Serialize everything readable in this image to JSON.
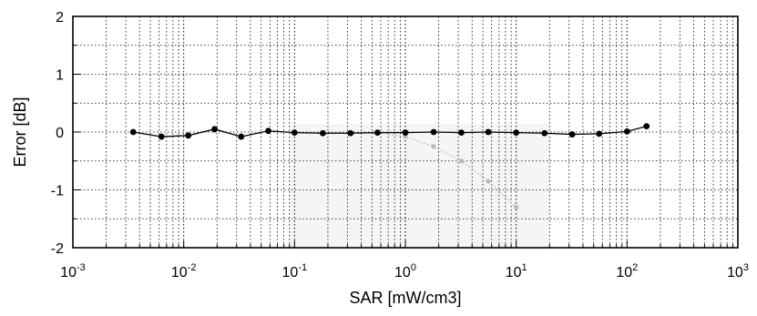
{
  "chart_data": {
    "type": "line",
    "title": "",
    "xlabel": "SAR [mW/cm3]",
    "ylabel": "Error [dB]",
    "x_scale": "log",
    "xlim": [
      0.001,
      1000
    ],
    "ylim": [
      -2,
      2
    ],
    "x_ticks": [
      {
        "base": "10",
        "exp": "-3"
      },
      {
        "base": "10",
        "exp": "-2"
      },
      {
        "base": "10",
        "exp": "-1"
      },
      {
        "base": "10",
        "exp": "0"
      },
      {
        "base": "10",
        "exp": "1"
      },
      {
        "base": "10",
        "exp": "2"
      },
      {
        "base": "10",
        "exp": "3"
      }
    ],
    "y_ticks": [
      "2",
      "1",
      "0",
      "-1",
      "-2"
    ],
    "y_tick_values": [
      2,
      1,
      0,
      -1,
      -2
    ],
    "grid": true,
    "legend": "none",
    "series": [
      {
        "color": "#000000",
        "x": [
          0.0035,
          0.0063,
          0.011,
          0.019,
          0.033,
          0.058,
          0.1,
          0.18,
          0.32,
          0.56,
          1.0,
          1.8,
          3.2,
          5.6,
          10,
          18,
          32,
          56,
          100,
          150
        ],
        "y": [
          0.0,
          -0.08,
          -0.06,
          0.05,
          -0.08,
          0.02,
          -0.01,
          -0.02,
          -0.02,
          -0.01,
          -0.01,
          0.0,
          -0.01,
          0.0,
          -0.01,
          -0.02,
          -0.04,
          -0.03,
          0.01,
          0.1
        ]
      },
      {
        "color": "#b8b8b8",
        "x": [
          0.56,
          1.0,
          1.8,
          3.2,
          5.6,
          10
        ],
        "y": [
          -0.02,
          -0.08,
          -0.25,
          -0.5,
          -0.85,
          -1.3
        ]
      }
    ]
  }
}
